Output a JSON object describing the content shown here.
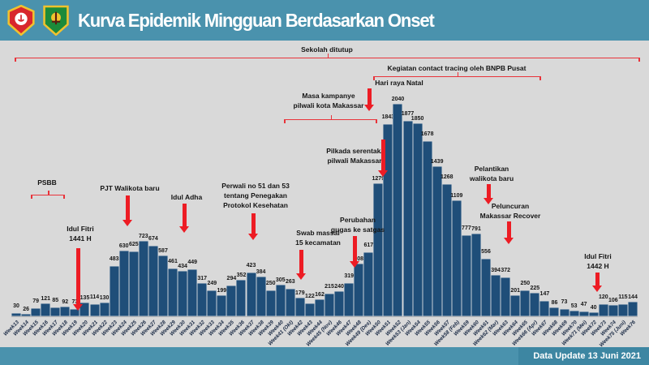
{
  "header": {
    "title": "Kurva Epidemik Mingguan Berdasarkan Onset"
  },
  "footer": {
    "data_update": "Data Update 13 Juni 2021"
  },
  "colors": {
    "header_teal": "#4A92AD",
    "footer_badge_teal": "#3D86A2",
    "chart_background": "#D9D9D9",
    "bar_blue": "#1F4E79",
    "annotation_red": "#E8333A",
    "arrow_red": "#ED1C24"
  },
  "chart_data": {
    "type": "bar",
    "title": "Kurva Epidemik Mingguan Berdasarkan Onset",
    "xlabel": "",
    "ylabel": "",
    "ylim": [
      0,
      2100
    ],
    "grid": false,
    "legend": "none",
    "bar_color": "#1F4E79",
    "categories": [
      "Week13",
      "Week14",
      "Week15",
      "Week16",
      "Week17",
      "Week18",
      "Week19",
      "Week20",
      "Week21",
      "Week22",
      "Week23",
      "Week24",
      "Week25",
      "Week26",
      "Week27",
      "Week28",
      "Week29",
      "Week30",
      "Week31",
      "Week32",
      "Week33",
      "Week34",
      "Week35",
      "Week36",
      "Week37",
      "Week38",
      "Week39",
      "Week40",
      "Week41 (Okt)",
      "Week42",
      "Week43",
      "Week44",
      "Week45 (Nov)",
      "Week46",
      "Week47",
      "Week48",
      "Week49 (Des)",
      "Week50",
      "Week51",
      "Week52",
      "Week53 (Jan)",
      "Week54",
      "Week55",
      "Week56",
      "Week57",
      "Week58 (Feb)",
      "Week59",
      "Week60",
      "Week61",
      "Week62 (Mar)",
      "Week63",
      "Week64",
      "Week65",
      "Week66 (Apr)",
      "Week67",
      "Week68",
      "Week69",
      "Week70",
      "Week71 (Mei)",
      "Week72",
      "Week73",
      "Week74",
      "Week75 (Juni)",
      "Week76"
    ],
    "values": [
      30,
      26,
      79,
      121,
      85,
      92,
      73,
      135,
      114,
      130,
      483,
      630,
      625,
      723,
      674,
      587,
      461,
      434,
      449,
      317,
      249,
      199,
      294,
      352,
      423,
      384,
      250,
      305,
      263,
      179,
      122,
      162,
      215,
      240,
      319,
      508,
      617,
      1279,
      1843,
      2040,
      1877,
      1850,
      1678,
      1439,
      1268,
      1109,
      777,
      791,
      556,
      394,
      372,
      201,
      250,
      225,
      147,
      86,
      73,
      53,
      47,
      40,
      120,
      106,
      115,
      144
    ]
  },
  "ann": {
    "sekolah": [
      "Sekolah ditutup"
    ],
    "tracing": [
      "Kegiatan contact tracing oleh BNPB Pusat"
    ],
    "natal": [
      "Hari raya Natal"
    ],
    "kampanye": [
      "Masa kampanye",
      "pilwali kota Makassar"
    ],
    "pilkada": [
      "Pilkada serentak/",
      "pilwali Makassar"
    ],
    "psbb": [
      "PSBB"
    ],
    "fitri1441": [
      "Idul Fitri",
      "1441 H"
    ],
    "pjt": [
      "PJT Walikota baru"
    ],
    "adha": [
      "Idul Adha"
    ],
    "perwali": [
      "Perwali no 51 dan 53",
      "tentang Penegakan",
      "Protokol Kesehatan"
    ],
    "swab": [
      "Swab massal",
      "15 kecamatan"
    ],
    "gugas": [
      "Perubahan",
      "gugas ke satgas"
    ],
    "pelantikan": [
      "Pelantikan",
      "walikota baru"
    ],
    "recover": [
      "Peluncuran",
      "Makassar Recover"
    ],
    "fitri1442": [
      "Idul Fitri",
      "1442 H"
    ]
  }
}
